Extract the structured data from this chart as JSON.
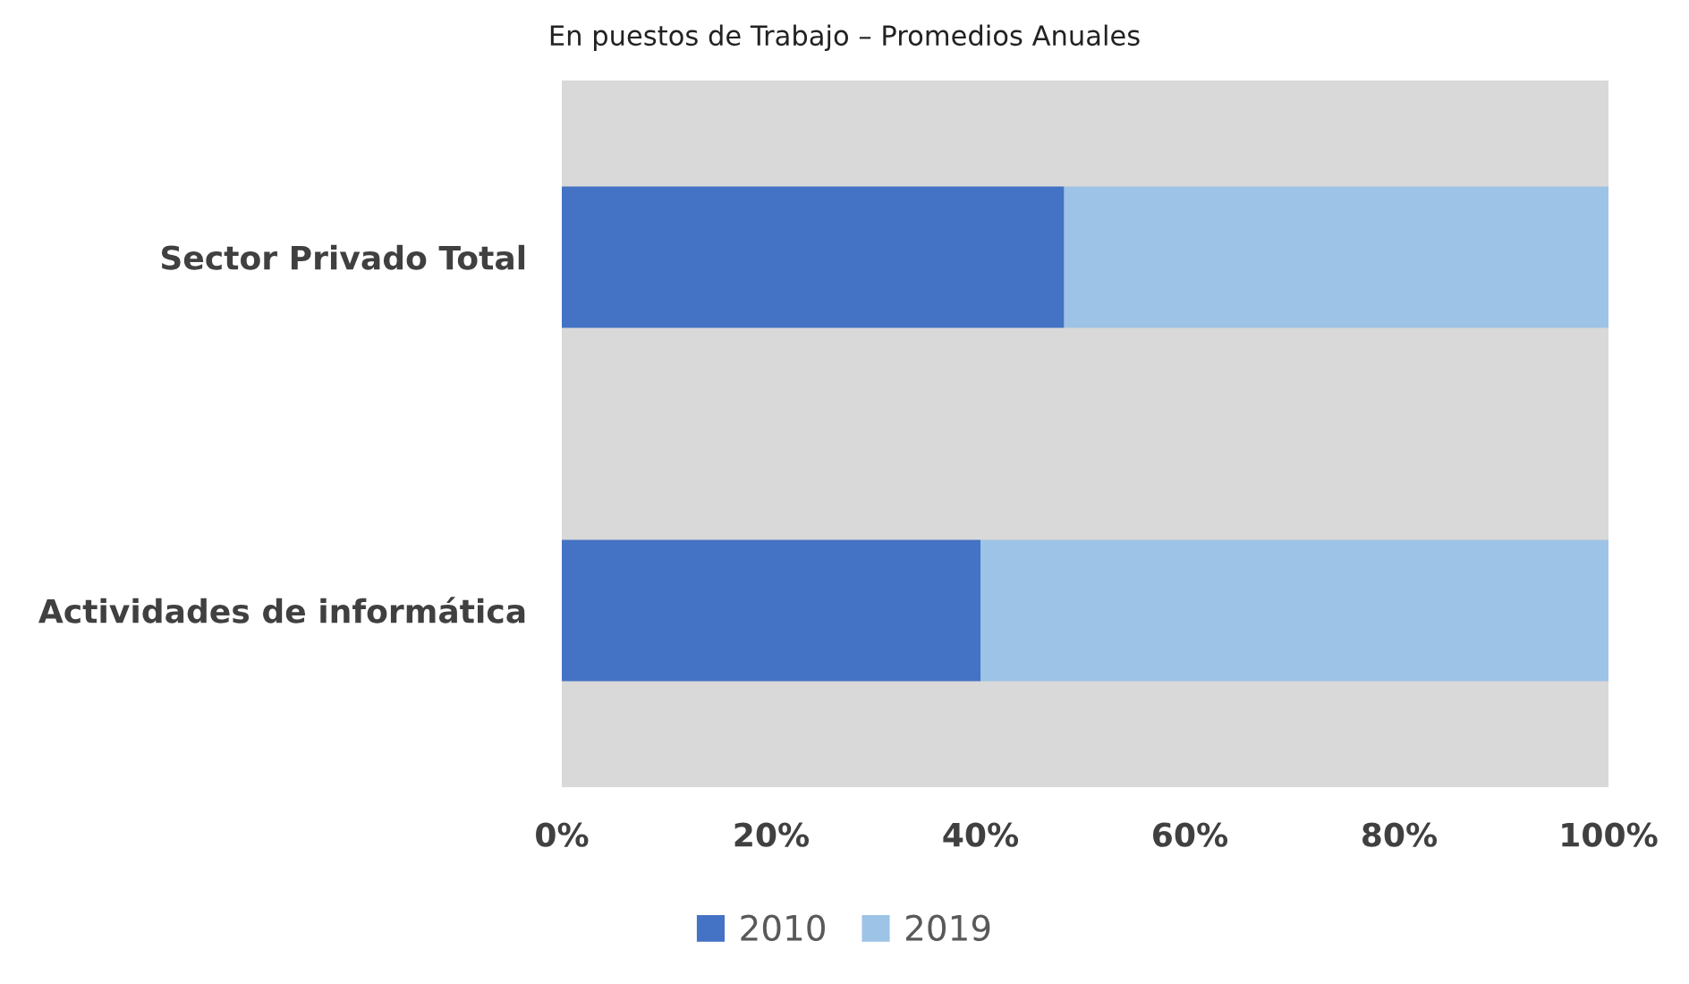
{
  "chart_data": {
    "type": "bar",
    "orientation": "horizontal",
    "stacked": true,
    "subtitle": "En puestos de Trabajo – Promedios Anuales",
    "categories": [
      "Sector Privado Total",
      "Actividades de informática"
    ],
    "series": [
      {
        "name": "2010",
        "color": "#4472c4",
        "values": [
          48,
          40
        ]
      },
      {
        "name": "2019",
        "color": "#9dc3e6",
        "values": [
          52,
          60
        ]
      }
    ],
    "xlim": [
      0,
      100
    ],
    "xticks": [
      {
        "value": 0,
        "label": "0%"
      },
      {
        "value": 20,
        "label": "20%"
      },
      {
        "value": 40,
        "label": "40%"
      },
      {
        "value": 60,
        "label": "60%"
      },
      {
        "value": 80,
        "label": "80%"
      },
      {
        "value": 100,
        "label": "100%"
      }
    ],
    "grid": false,
    "legend": "bottom"
  }
}
